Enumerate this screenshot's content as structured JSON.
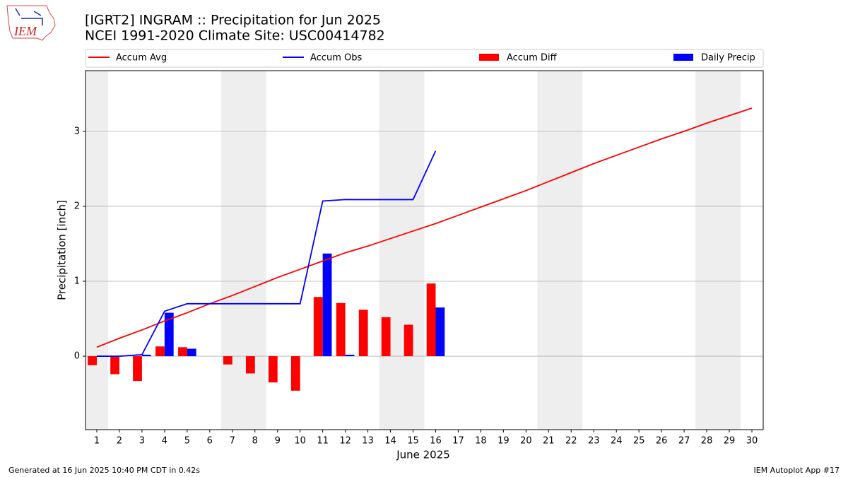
{
  "logo_text": "IEM",
  "footer_left": "Generated at 16 Jun 2025 10:40 PM CDT in 0.42s",
  "footer_right": "IEM Autoplot App #17",
  "chart_data": {
    "type": "combo",
    "title": "[IGRT2] INGRAM :: Precipitation for Jun 2025",
    "subtitle": "NCEI 1991-2020 Climate Site: USC00414782",
    "xlabel": "June 2025",
    "ylabel": "Precipitation [inch]",
    "x": [
      1,
      2,
      3,
      4,
      5,
      6,
      7,
      8,
      9,
      10,
      11,
      12,
      13,
      14,
      15,
      16,
      17,
      18,
      19,
      20,
      21,
      22,
      23,
      24,
      25,
      26,
      27,
      28,
      29,
      30
    ],
    "xlim": [
      0.5,
      30.5
    ],
    "xticks": [
      1,
      2,
      3,
      4,
      5,
      6,
      7,
      8,
      9,
      10,
      11,
      12,
      13,
      14,
      15,
      16,
      17,
      18,
      19,
      20,
      21,
      22,
      23,
      24,
      25,
      26,
      27,
      28,
      29,
      30
    ],
    "ylim": [
      -0.98,
      3.81
    ],
    "yticks": [
      0,
      1,
      2,
      3
    ],
    "grid": true,
    "shaded_spans": [
      [
        0.5,
        1.5
      ],
      [
        6.5,
        8.5
      ],
      [
        13.5,
        15.5
      ],
      [
        20.5,
        22.5
      ],
      [
        27.5,
        29.5
      ]
    ],
    "shade_color": "#eeeeee",
    "series": [
      {
        "name": "Accum Avg",
        "type": "line",
        "color": "#ff0000",
        "values": [
          0.12,
          0.24,
          0.35,
          0.47,
          0.58,
          0.7,
          0.81,
          0.93,
          1.05,
          1.16,
          1.27,
          1.38,
          1.47,
          1.57,
          1.67,
          1.77,
          1.88,
          1.99,
          2.1,
          2.21,
          2.33,
          2.45,
          2.57,
          2.68,
          2.79,
          2.9,
          3.0,
          3.11,
          3.21,
          3.31
        ]
      },
      {
        "name": "Accum Obs",
        "type": "line",
        "color": "#0000ff",
        "values": [
          0,
          0,
          0.02,
          0.6,
          0.7,
          0.7,
          0.7,
          0.7,
          0.7,
          0.7,
          2.07,
          2.09,
          2.09,
          2.09,
          2.09,
          2.74,
          null,
          null,
          null,
          null,
          null,
          null,
          null,
          null,
          null,
          null,
          null,
          null,
          null,
          null
        ]
      },
      {
        "name": "Accum Diff",
        "type": "bar",
        "side": "left",
        "color": "#ff0000",
        "values": [
          -0.12,
          -0.24,
          -0.33,
          0.13,
          0.12,
          0,
          -0.11,
          -0.23,
          -0.35,
          -0.46,
          0.79,
          0.71,
          0.62,
          0.52,
          0.42,
          0.97,
          null,
          null,
          null,
          null,
          null,
          null,
          null,
          null,
          null,
          null,
          null,
          null,
          null,
          null
        ]
      },
      {
        "name": "Daily Precip",
        "type": "bar",
        "side": "right",
        "color": "#0000ff",
        "values": [
          0,
          0,
          0.02,
          0.58,
          0.1,
          0,
          0,
          0,
          0,
          0,
          1.37,
          0.02,
          0,
          0,
          0,
          0.65,
          null,
          null,
          null,
          null,
          null,
          null,
          null,
          null,
          null,
          null,
          null,
          null,
          null,
          null
        ]
      }
    ]
  }
}
